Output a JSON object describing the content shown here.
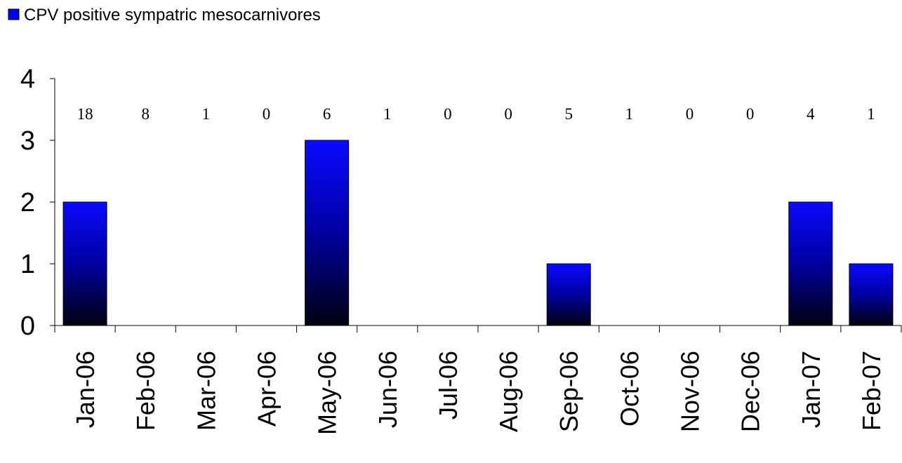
{
  "chart_data": {
    "type": "bar",
    "title": "",
    "xlabel": "",
    "ylabel": "",
    "ylim": [
      0,
      4
    ],
    "yticks": [
      "0",
      "1",
      "2",
      "3",
      "4"
    ],
    "grid": false,
    "legend_position": "top-left",
    "categories": [
      "Jan-06",
      "Feb-06",
      "Mar-06",
      "Apr-06",
      "May-06",
      "Jun-06",
      "Jul-06",
      "Aug-06",
      "Sep-06",
      "Oct-06",
      "Nov-06",
      "Dec-06",
      "Jan-07",
      "Feb-07"
    ],
    "series": [
      {
        "name": "CPV positive sympatric mesocarnivores",
        "values": [
          2,
          0,
          0,
          0,
          3,
          0,
          0,
          0,
          1,
          0,
          0,
          0,
          2,
          1
        ],
        "color": "#0000ff"
      }
    ],
    "annotations": [
      "18",
      "8",
      "1",
      "0",
      "6",
      "1",
      "0",
      "0",
      "5",
      "1",
      "0",
      "0",
      "4",
      "1"
    ]
  }
}
